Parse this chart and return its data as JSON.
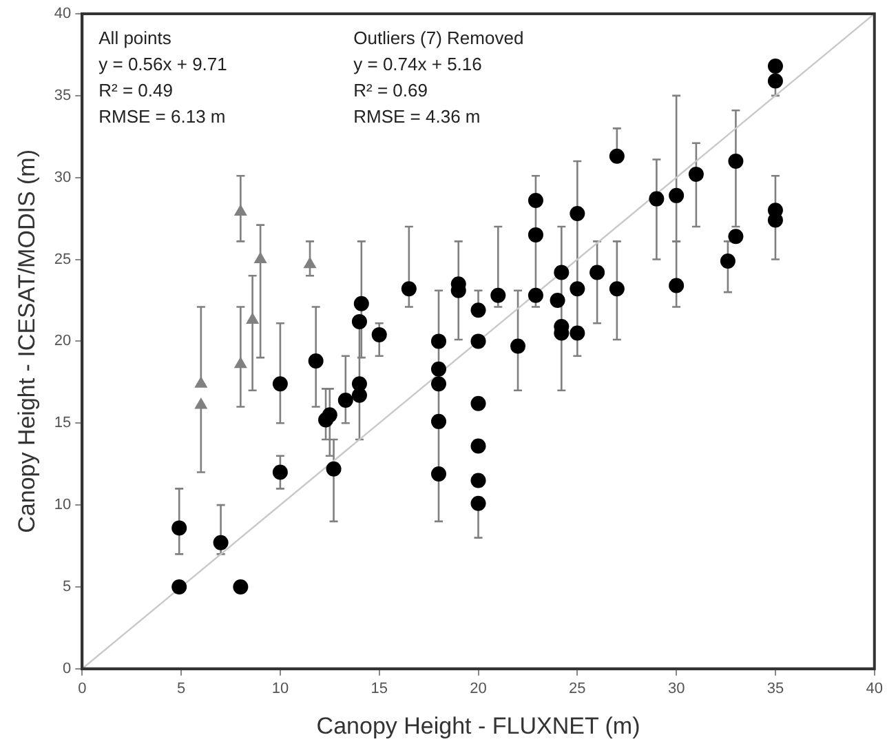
{
  "chart_data": {
    "type": "scatter",
    "xlabel": "Canopy Height - FLUXNET (m)",
    "ylabel": "Canopy Height - ICESAT/MODIS (m)",
    "xlim": [
      0,
      40
    ],
    "xticks": [
      0,
      5,
      10,
      15,
      20,
      25,
      30,
      35,
      40
    ],
    "ylim": [
      0,
      40
    ],
    "yticks": [
      0,
      5,
      10,
      15,
      20,
      25,
      30,
      35,
      40
    ],
    "grid": false,
    "legend": false,
    "annotations": [
      "All points",
      "y = 0.56x + 9.71",
      "R² = 0.49",
      "RMSE = 6.13 m",
      "Outliers (7) Removed",
      "y = 0.74x + 5.16",
      "R² = 0.69",
      "RMSE = 4.36 m"
    ],
    "series": [
      {
        "type": "line",
        "color": "#c8c8c8",
        "marker": "none",
        "line_style": "solid",
        "x": [
          0,
          40
        ],
        "values": [
          0,
          40
        ]
      },
      {
        "color": "#000000",
        "marker": "circle",
        "x": [
          4.9,
          4.9,
          7.0,
          8.0,
          10.0,
          10.0,
          11.8,
          12.3,
          12.5,
          12.7,
          13.3,
          14.0,
          14.0,
          14.0,
          14.1,
          15.0,
          16.5,
          18.0,
          18.0,
          18.0,
          18.0,
          18.0,
          19.0,
          19.0,
          20.0,
          20.0,
          20.0,
          20.0,
          20.0,
          20.0,
          21.0,
          22.0,
          22.9,
          22.9,
          22.9,
          24.0,
          24.2,
          24.2,
          24.2,
          25.0,
          25.0,
          25.0,
          26.0,
          27.0,
          27.0,
          29.0,
          30.0,
          30.0,
          31.0,
          32.6,
          33.0,
          33.0,
          35.0,
          35.0,
          35.0,
          35.0
        ],
        "values": [
          5.0,
          8.6,
          7.7,
          5.0,
          17.4,
          12.0,
          18.8,
          15.2,
          15.5,
          12.2,
          16.4,
          17.4,
          16.7,
          21.2,
          22.3,
          20.4,
          23.2,
          20.0,
          18.3,
          17.4,
          15.1,
          11.9,
          23.5,
          23.1,
          21.9,
          20.0,
          16.2,
          13.6,
          11.5,
          10.1,
          22.8,
          19.7,
          28.6,
          26.5,
          22.8,
          22.5,
          24.2,
          20.9,
          20.5,
          27.8,
          23.2,
          20.5,
          24.2,
          31.3,
          23.2,
          28.7,
          28.9,
          23.4,
          30.2,
          24.9,
          31.0,
          26.4,
          36.8,
          35.9,
          28.0,
          27.4
        ],
        "errors": [
          null,
          [
            7,
            11
          ],
          [
            7,
            10
          ],
          null,
          [
            15,
            21.1
          ],
          [
            11,
            13
          ],
          [
            16,
            22.1
          ],
          [
            14,
            17.1
          ],
          [
            13,
            17.1
          ],
          [
            9,
            14
          ],
          [
            15,
            19.1
          ],
          [
            14,
            21.1
          ],
          null,
          null,
          [
            19,
            26.1
          ],
          [
            19.1,
            21.1
          ],
          [
            22.1,
            27
          ],
          null,
          null,
          null,
          null,
          [
            9,
            23.1
          ],
          [
            20.1,
            26.1
          ],
          null,
          [
            21.9,
            23.1
          ],
          null,
          null,
          null,
          null,
          [
            8,
            10.1
          ],
          [
            22.1,
            27
          ],
          [
            17,
            23.1
          ],
          [
            22.1,
            30.1
          ],
          null,
          null,
          null,
          [
            17,
            27
          ],
          null,
          null,
          [
            19.1,
            31
          ],
          null,
          null,
          [
            21.1,
            26.1
          ],
          [
            31.3,
            33
          ],
          [
            20.1,
            26.1
          ],
          [
            25,
            31.1
          ],
          [
            26.1,
            35
          ],
          [
            22.1,
            26.1
          ],
          [
            27,
            32.1
          ],
          [
            23,
            26.1
          ],
          [
            27,
            34.1
          ],
          null,
          null,
          [
            35,
            35.9
          ],
          [
            25,
            30.1
          ],
          null
        ]
      },
      {
        "color": "#808080",
        "marker": "triangle",
        "x": [
          6.0,
          6.0,
          8.0,
          8.0,
          8.6,
          9.0,
          11.5
        ],
        "values": [
          17.4,
          16.1,
          18.6,
          27.9,
          21.3,
          25.0,
          24.7
        ],
        "errors": [
          [
            17.4,
            22.1
          ],
          [
            12,
            16.1
          ],
          [
            16,
            22.1
          ],
          [
            26.1,
            30.1
          ],
          [
            17,
            24
          ],
          [
            19,
            27.1
          ],
          [
            24,
            26.1
          ]
        ]
      }
    ]
  }
}
